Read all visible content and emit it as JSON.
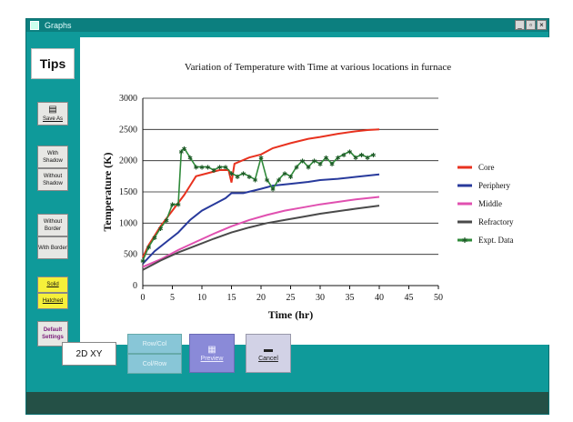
{
  "window": {
    "title": "Graphs",
    "min_label": "_",
    "max_label": "▫",
    "close_label": "×"
  },
  "sidebar": {
    "tips": "Tips",
    "save_as": "Save As",
    "with_shadow": "With Shadow",
    "without_shadow": "Without Shadow",
    "without_border": "Without Border",
    "with_border": "With Border",
    "solid": "Solid",
    "hatched": "Hatched",
    "default_settings": "Default Settings"
  },
  "bottom": {
    "chart_type": "2D XY",
    "row_col": "Row/Col",
    "col_row": "Col/Row",
    "preview": "Preview",
    "cancel": "Cancel"
  },
  "chart_data": {
    "type": "line",
    "title": "Variation of Temperature with Time at various locations in furnace",
    "xlabel": "Time (hr)",
    "ylabel": "Temperature (K)",
    "xlim": [
      0,
      50
    ],
    "ylim": [
      0,
      3000
    ],
    "xticks": [
      0,
      5,
      10,
      15,
      20,
      25,
      30,
      35,
      40,
      45,
      50
    ],
    "yticks": [
      0,
      500,
      1000,
      1500,
      2000,
      2500,
      3000
    ],
    "grid": "horizontal",
    "legend_position": "right",
    "series": [
      {
        "name": "Core",
        "color": "#e8321f",
        "marker": "none",
        "points": [
          [
            0,
            450
          ],
          [
            1,
            650
          ],
          [
            2,
            800
          ],
          [
            3,
            950
          ],
          [
            5,
            1200
          ],
          [
            7,
            1450
          ],
          [
            8,
            1600
          ],
          [
            9,
            1750
          ],
          [
            11,
            1800
          ],
          [
            13,
            1850
          ],
          [
            14.5,
            1850
          ],
          [
            15,
            1650
          ],
          [
            15.5,
            1950
          ],
          [
            18,
            2050
          ],
          [
            20,
            2100
          ],
          [
            22,
            2200
          ],
          [
            25,
            2280
          ],
          [
            28,
            2350
          ],
          [
            30,
            2380
          ],
          [
            33,
            2430
          ],
          [
            36,
            2470
          ],
          [
            38,
            2490
          ],
          [
            40,
            2500
          ]
        ]
      },
      {
        "name": "Periphery",
        "color": "#283a9c",
        "marker": "none",
        "points": [
          [
            0,
            350
          ],
          [
            2,
            550
          ],
          [
            4,
            700
          ],
          [
            6,
            850
          ],
          [
            8,
            1050
          ],
          [
            10,
            1200
          ],
          [
            12,
            1300
          ],
          [
            14,
            1400
          ],
          [
            15,
            1480
          ],
          [
            17,
            1480
          ],
          [
            20,
            1550
          ],
          [
            22,
            1600
          ],
          [
            25,
            1630
          ],
          [
            28,
            1660
          ],
          [
            30,
            1690
          ],
          [
            33,
            1710
          ],
          [
            36,
            1740
          ],
          [
            38,
            1760
          ],
          [
            40,
            1780
          ]
        ]
      },
      {
        "name": "Middle",
        "color": "#e050b0",
        "marker": "none",
        "points": [
          [
            0,
            300
          ],
          [
            3,
            420
          ],
          [
            6,
            570
          ],
          [
            9,
            700
          ],
          [
            12,
            830
          ],
          [
            15,
            950
          ],
          [
            18,
            1050
          ],
          [
            21,
            1130
          ],
          [
            24,
            1200
          ],
          [
            27,
            1250
          ],
          [
            30,
            1300
          ],
          [
            33,
            1340
          ],
          [
            36,
            1380
          ],
          [
            40,
            1420
          ]
        ]
      },
      {
        "name": "Refractory",
        "color": "#4a4a4a",
        "marker": "none",
        "points": [
          [
            0,
            250
          ],
          [
            3,
            400
          ],
          [
            6,
            530
          ],
          [
            9,
            640
          ],
          [
            12,
            750
          ],
          [
            15,
            850
          ],
          [
            18,
            930
          ],
          [
            21,
            1000
          ],
          [
            24,
            1050
          ],
          [
            27,
            1100
          ],
          [
            30,
            1150
          ],
          [
            33,
            1190
          ],
          [
            36,
            1230
          ],
          [
            40,
            1280
          ]
        ]
      },
      {
        "name": "Expt. Data",
        "color": "#2f8a3a",
        "marker": "star",
        "points": [
          [
            0,
            400
          ],
          [
            1,
            620
          ],
          [
            2,
            770
          ],
          [
            3,
            920
          ],
          [
            4,
            1050
          ],
          [
            5,
            1300
          ],
          [
            6,
            1300
          ],
          [
            6.5,
            2150
          ],
          [
            7,
            2200
          ],
          [
            8,
            2050
          ],
          [
            9,
            1900
          ],
          [
            10,
            1900
          ],
          [
            11,
            1900
          ],
          [
            12,
            1850
          ],
          [
            13,
            1900
          ],
          [
            14,
            1900
          ],
          [
            15,
            1800
          ],
          [
            16,
            1750
          ],
          [
            17,
            1800
          ],
          [
            18,
            1750
          ],
          [
            19,
            1700
          ],
          [
            20,
            2050
          ],
          [
            21,
            1700
          ],
          [
            22,
            1550
          ],
          [
            23,
            1700
          ],
          [
            24,
            1800
          ],
          [
            25,
            1750
          ],
          [
            26,
            1900
          ],
          [
            27,
            2000
          ],
          [
            28,
            1900
          ],
          [
            29,
            2000
          ],
          [
            30,
            1950
          ],
          [
            31,
            2050
          ],
          [
            32,
            1950
          ],
          [
            33,
            2050
          ],
          [
            34,
            2100
          ],
          [
            35,
            2150
          ],
          [
            36,
            2050
          ],
          [
            37,
            2100
          ],
          [
            38,
            2050
          ],
          [
            39,
            2100
          ]
        ]
      }
    ]
  }
}
